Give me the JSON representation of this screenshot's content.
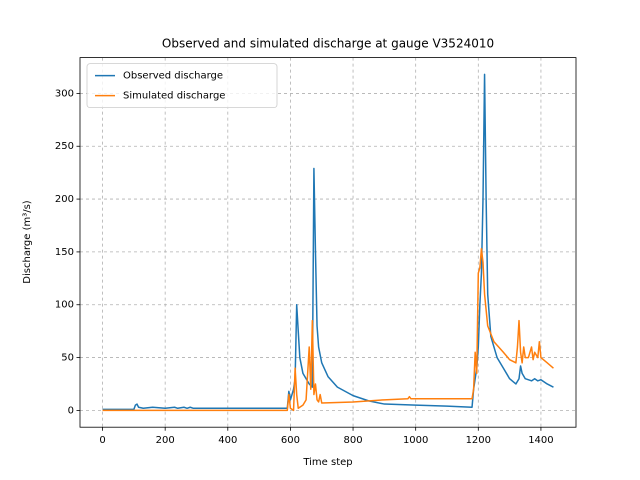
{
  "chart_data": {
    "type": "line",
    "title": "Observed and simulated discharge at gauge V3524010",
    "x_label": "Time step",
    "y_label": "Discharge (m³/s)",
    "xlim": [
      -72,
      1512
    ],
    "ylim": [
      -15.9,
      333.9
    ],
    "xticks": [
      0,
      200,
      400,
      600,
      800,
      1000,
      1200,
      1400
    ],
    "yticks": [
      0,
      50,
      100,
      150,
      200,
      250,
      300
    ],
    "grid": true,
    "legend": "upper-left",
    "series": [
      {
        "name": "Observed discharge",
        "color": "#1f77b4",
        "x": [
          0,
          100,
          105,
          110,
          115,
          130,
          160,
          200,
          230,
          240,
          260,
          270,
          280,
          290,
          400,
          500,
          590,
          595,
          600,
          610,
          615,
          620,
          625,
          630,
          640,
          660,
          670,
          675,
          680,
          685,
          690,
          700,
          720,
          750,
          800,
          850,
          900,
          1000,
          1100,
          1180,
          1185,
          1190,
          1195,
          1200,
          1205,
          1210,
          1215,
          1220,
          1225,
          1230,
          1240,
          1260,
          1280,
          1300,
          1320,
          1330,
          1335,
          1340,
          1350,
          1370,
          1380,
          1390,
          1400,
          1410,
          1420,
          1440
        ],
        "values": [
          1,
          1,
          5,
          6,
          3,
          2,
          3,
          2,
          3,
          2,
          3,
          2,
          3,
          2,
          2,
          2,
          2,
          18,
          10,
          20,
          30,
          100,
          75,
          50,
          35,
          25,
          22,
          229,
          150,
          80,
          60,
          45,
          32,
          22,
          14,
          9,
          6,
          5,
          4,
          3,
          20,
          30,
          40,
          60,
          100,
          130,
          200,
          318,
          200,
          110,
          70,
          50,
          40,
          30,
          25,
          30,
          42,
          35,
          30,
          28,
          30,
          28,
          29,
          27,
          25,
          22
        ]
      },
      {
        "name": "Simulated discharge",
        "color": "#ff7f0e",
        "x": [
          0,
          100,
          500,
          590,
          595,
          600,
          610,
          615,
          620,
          625,
          640,
          650,
          660,
          665,
          670,
          675,
          680,
          685,
          690,
          695,
          700,
          800,
          900,
          975,
          980,
          985,
          1180,
          1185,
          1190,
          1195,
          1200,
          1205,
          1210,
          1215,
          1220,
          1230,
          1250,
          1280,
          1300,
          1320,
          1325,
          1330,
          1335,
          1340,
          1345,
          1350,
          1360,
          1370,
          1375,
          1380,
          1390,
          1395,
          1400,
          1420,
          1440
        ],
        "values": [
          0,
          0,
          0,
          0,
          15,
          2,
          0,
          40,
          15,
          2,
          5,
          10,
          60,
          20,
          85,
          15,
          25,
          10,
          8,
          15,
          7,
          8,
          10,
          11,
          13,
          11,
          11,
          20,
          55,
          35,
          130,
          135,
          153,
          140,
          110,
          80,
          65,
          55,
          48,
          45,
          60,
          85,
          55,
          45,
          60,
          50,
          50,
          60,
          48,
          55,
          50,
          65,
          50,
          45,
          40
        ]
      }
    ]
  }
}
